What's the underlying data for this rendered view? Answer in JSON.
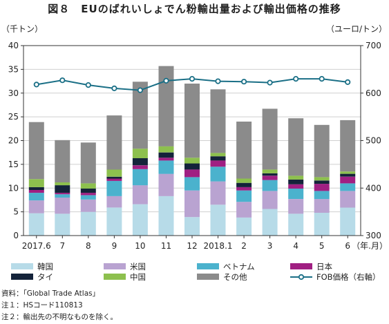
{
  "title": "図８　EUのばれいしょでん粉輸出量および輸出価格の推移",
  "chart_data": {
    "type": "bar",
    "stacked": true,
    "left_unit": "（千トン）",
    "right_unit": "（ユーロ/トン）",
    "x_unit": "（年.月）",
    "categories": [
      "2017.6",
      "7",
      "8",
      "9",
      "10",
      "11",
      "12",
      "2018.1",
      "2",
      "3",
      "4",
      "5",
      "6"
    ],
    "ylim": [
      0,
      40
    ],
    "yticks": [
      0,
      5,
      10,
      15,
      20,
      25,
      30,
      35,
      40
    ],
    "y2lim": [
      300,
      700
    ],
    "y2ticks": [
      300,
      400,
      500,
      600,
      700
    ],
    "series": [
      {
        "name": "韓国",
        "color": "#b7dbe8",
        "values": [
          4.7,
          4.6,
          5.0,
          5.9,
          6.6,
          8.3,
          3.9,
          6.5,
          3.8,
          5.6,
          4.6,
          4.8,
          5.9
        ]
      },
      {
        "name": "米国",
        "color": "#b9a3d1",
        "values": [
          2.7,
          3.4,
          2.6,
          2.4,
          4.0,
          4.7,
          5.6,
          4.9,
          3.3,
          3.8,
          3.1,
          2.9,
          3.5
        ]
      },
      {
        "name": "ベトナム",
        "color": "#4bb2cd",
        "values": [
          1.6,
          0.7,
          0.9,
          3.2,
          3.4,
          2.8,
          2.8,
          3.1,
          2.4,
          2.3,
          2.2,
          1.7,
          1.6
        ]
      },
      {
        "name": "日本",
        "color": "#a01f82",
        "values": [
          0.6,
          0.3,
          0.5,
          0.5,
          0.8,
          0.6,
          1.6,
          1.3,
          0.7,
          0.9,
          0.9,
          1.5,
          1.4
        ]
      },
      {
        "name": "タイ",
        "color": "#14233a",
        "values": [
          0.6,
          1.6,
          0.9,
          0.4,
          1.5,
          1.1,
          1.3,
          0.9,
          0.9,
          0.5,
          1.0,
          0.7,
          0.6
        ]
      },
      {
        "name": "中国",
        "color": "#8dc04e",
        "values": [
          1.7,
          0.6,
          1.1,
          1.5,
          2.0,
          1.3,
          1.2,
          0.7,
          0.9,
          0.8,
          0.8,
          0.7,
          0.5
        ]
      },
      {
        "name": "その他",
        "color": "#8b8b8b",
        "values": [
          12.0,
          8.9,
          8.6,
          11.4,
          14.1,
          16.9,
          15.6,
          13.4,
          12.0,
          12.8,
          12.1,
          11.0,
          10.8
        ]
      }
    ],
    "line": {
      "name": "FOB価格（右軸）",
      "axis": "right",
      "color": "#1a6f86",
      "values": [
        618,
        627,
        617,
        610,
        606,
        626,
        630,
        625,
        624,
        622,
        630,
        630,
        623
      ]
    },
    "legend_position": "bottom"
  },
  "notes": [
    "資料：「Global Trade Atlas」",
    "注１：HSコード110813",
    "注２：輸出先の不明なものを除く。"
  ]
}
